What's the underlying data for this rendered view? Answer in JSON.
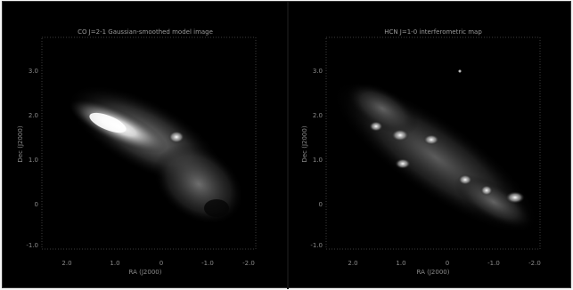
{
  "panels": [
    {
      "title": "CO J=2-1 Gaussian-smoothed model image",
      "xlabel": "RA (J2000)",
      "ylabel": "Dec (J2000)",
      "x_ticks": [
        "2.0",
        "1.0",
        "0",
        "-1.0",
        "-2.0"
      ],
      "y_ticks": [
        "3.0",
        "2.0",
        "1.0",
        "0",
        "-1.0"
      ]
    },
    {
      "title": "HCN J=1-0 interferometric map",
      "xlabel": "RA (J2000)",
      "ylabel": "Dec (J2000)",
      "x_ticks": [
        "2.0",
        "1.0",
        "0",
        "-1.0",
        "-2.0"
      ],
      "y_ticks": [
        "3.0",
        "2.0",
        "1.0",
        "0",
        "-1.0"
      ]
    }
  ]
}
